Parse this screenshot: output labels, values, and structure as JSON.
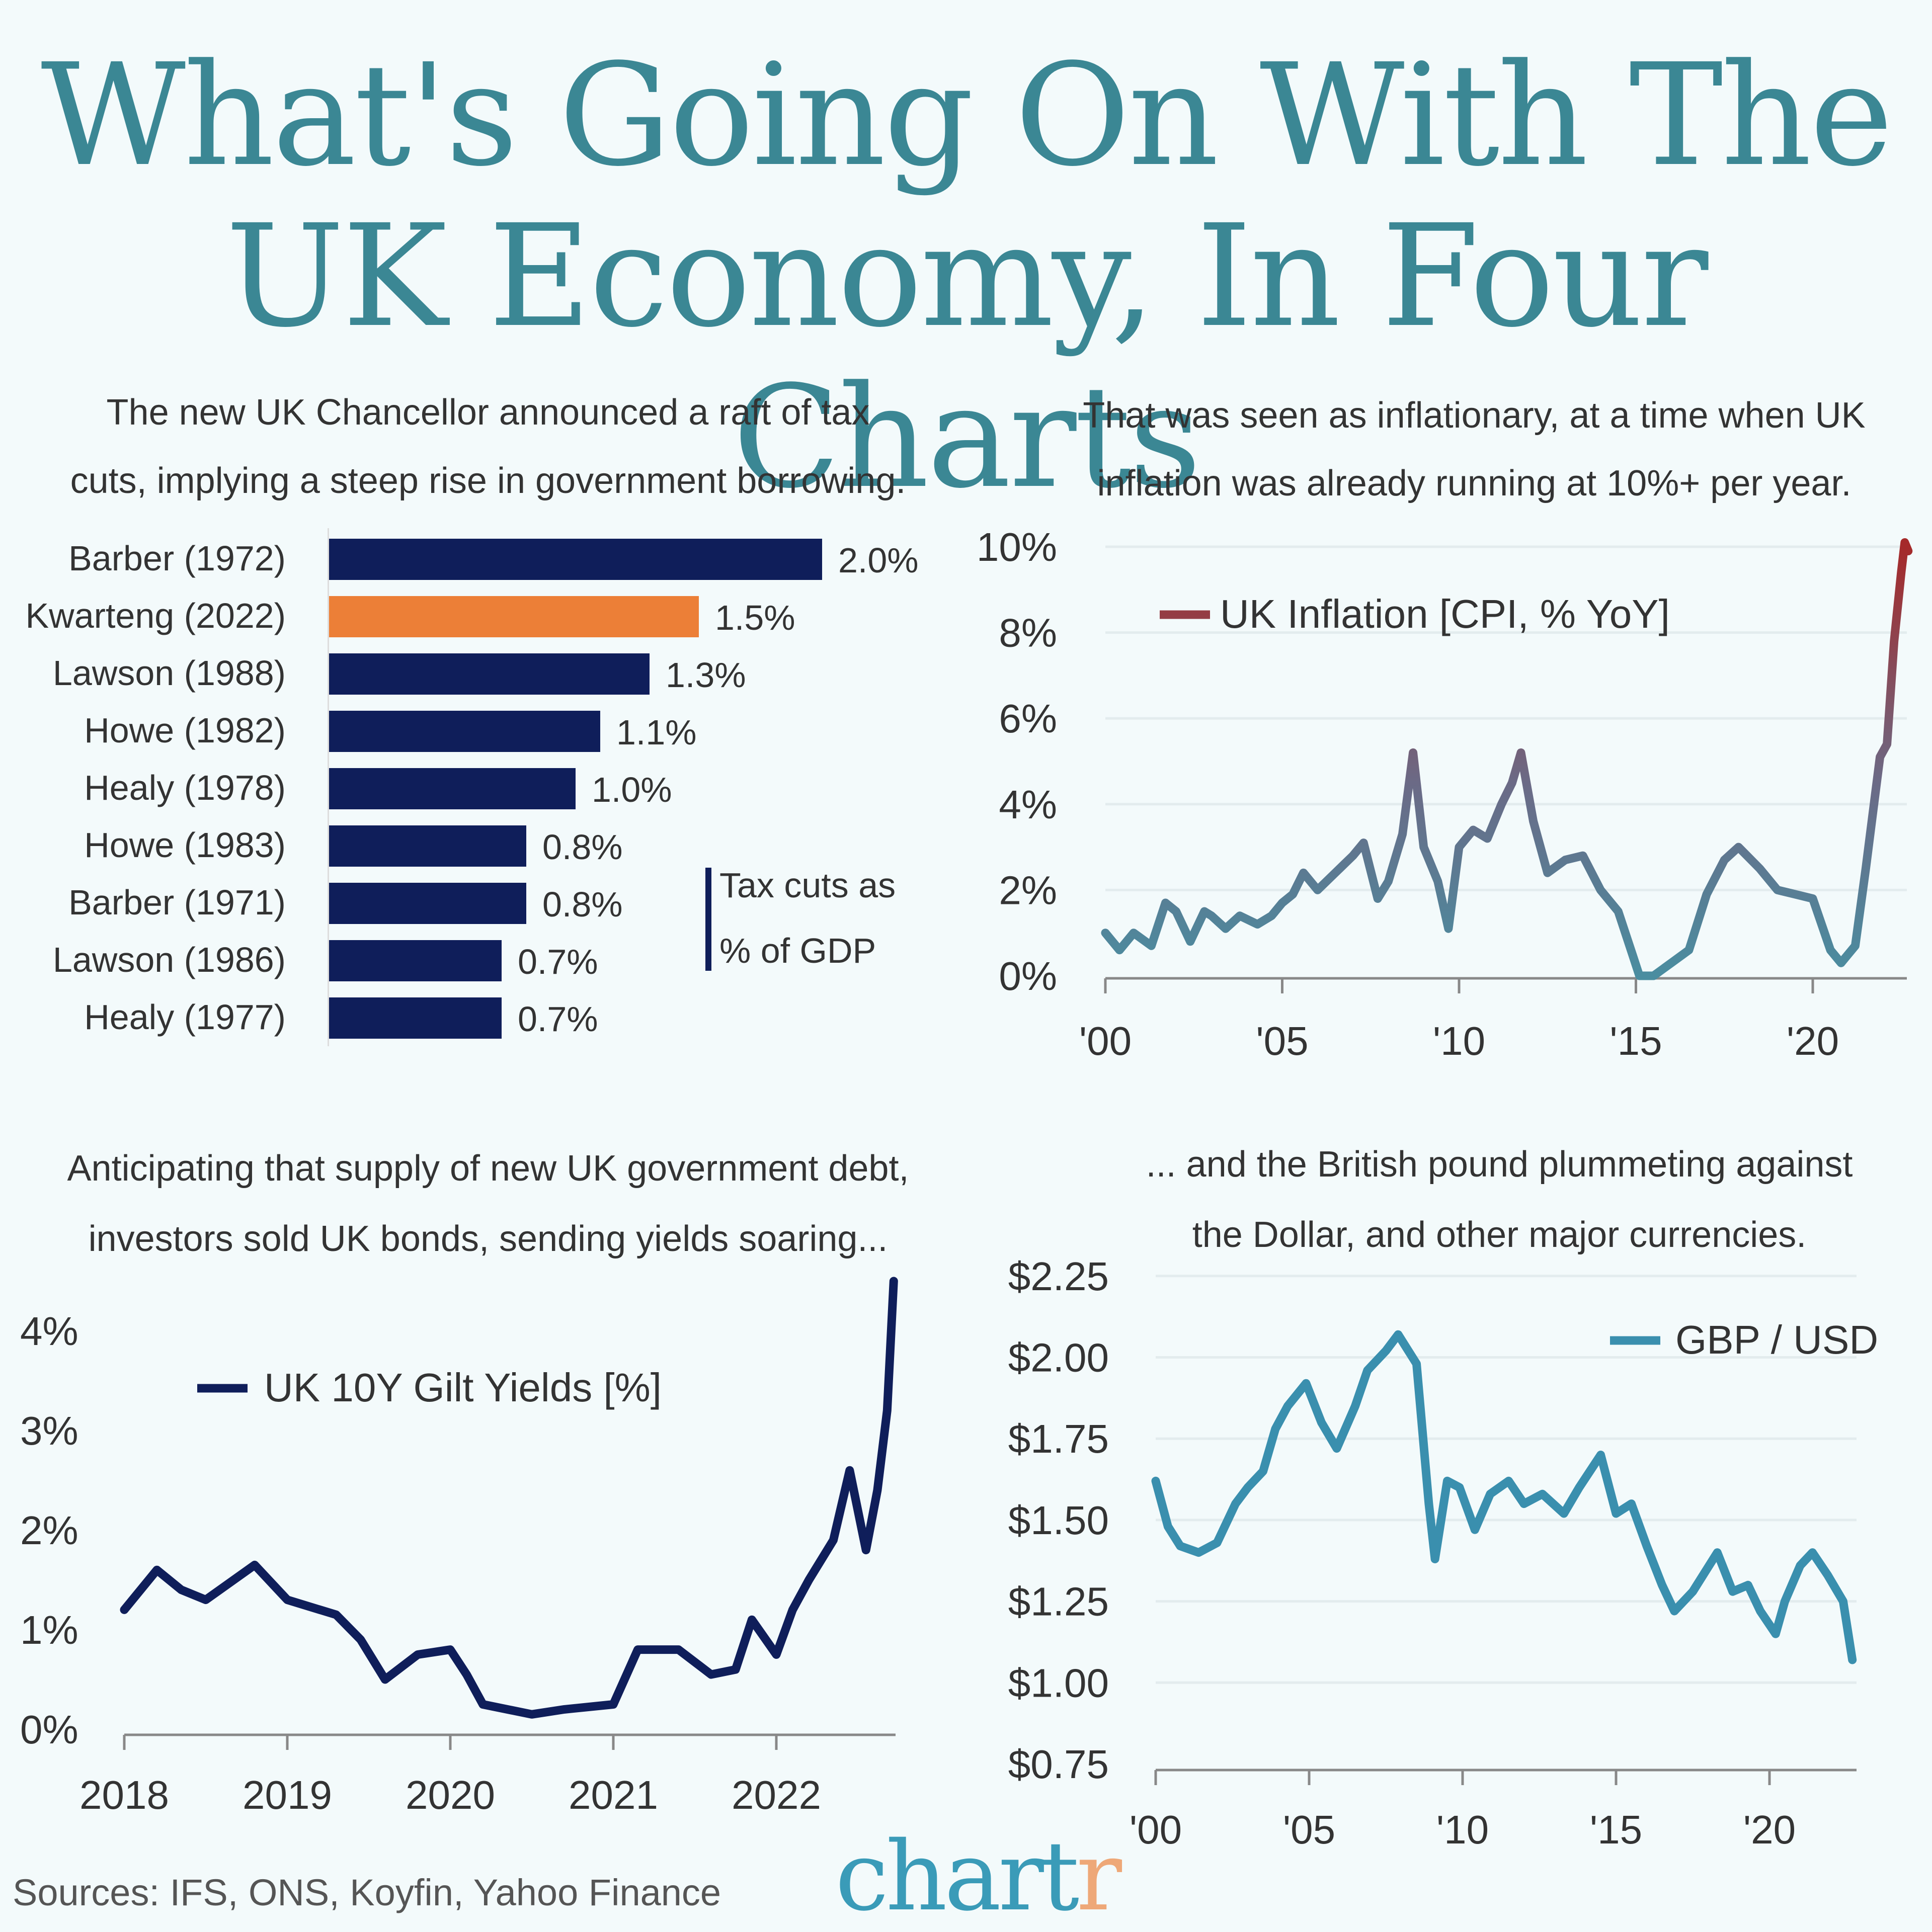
{
  "title": {
    "line1": "What's Going On With The",
    "line2": "UK Economy, In Four Charts"
  },
  "colors": {
    "title": "#3b8794",
    "navy": "#0f1e5a",
    "orange": "#ec7f37",
    "gbp": "#3a8fae",
    "inflation_low": "#4a8da0",
    "inflation_high": "#a52a2a",
    "background": "#f3fafb"
  },
  "sources": "Sources: IFS, ONS, Koyfin, Yahoo Finance",
  "logo": {
    "text": "chartr",
    "main": "chart",
    "accent": "r"
  },
  "chart_data": [
    {
      "type": "bar",
      "orientation": "horizontal",
      "subtitle": [
        "The new UK Chancellor announced a raft of tax",
        "cuts, implying a steep rise in government borrowing."
      ],
      "legend": [
        "Tax cuts as",
        "% of GDP"
      ],
      "categories": [
        "Barber (1972)",
        "Kwarteng (2022)",
        "Lawson (1988)",
        "Howe (1982)",
        "Healy (1978)",
        "Howe (1983)",
        "Barber (1971)",
        "Lawson (1986)",
        "Healy (1977)"
      ],
      "values": [
        2.0,
        1.5,
        1.3,
        1.1,
        1.0,
        0.8,
        0.8,
        0.7,
        0.7
      ],
      "labels": [
        "2.0%",
        "1.5%",
        "1.3%",
        "1.1%",
        "1.0%",
        "0.8%",
        "0.8%",
        "0.7%",
        "0.7%"
      ],
      "highlight": "Kwarteng (2022)",
      "unit": "%"
    },
    {
      "type": "line",
      "subtitle": [
        "That was seen as inflationary, at a time when UK",
        "inflation was already running at 10%+ per year."
      ],
      "series": [
        {
          "name": "UK Inflation [CPI, % YoY]",
          "points": [
            [
              2000,
              1.0
            ],
            [
              2000.4,
              0.6
            ],
            [
              2000.8,
              1.0
            ],
            [
              2001.3,
              0.7
            ],
            [
              2001.7,
              1.7
            ],
            [
              2002.0,
              1.5
            ],
            [
              2002.4,
              0.8
            ],
            [
              2002.8,
              1.5
            ],
            [
              2003.0,
              1.4
            ],
            [
              2003.4,
              1.1
            ],
            [
              2003.8,
              1.4
            ],
            [
              2004.3,
              1.2
            ],
            [
              2004.7,
              1.4
            ],
            [
              2005.0,
              1.7
            ],
            [
              2005.3,
              1.9
            ],
            [
              2005.6,
              2.4
            ],
            [
              2006.0,
              2.0
            ],
            [
              2006.5,
              2.4
            ],
            [
              2007.0,
              2.8
            ],
            [
              2007.3,
              3.1
            ],
            [
              2007.7,
              1.8
            ],
            [
              2008.0,
              2.2
            ],
            [
              2008.4,
              3.3
            ],
            [
              2008.7,
              5.2
            ],
            [
              2009.0,
              3.0
            ],
            [
              2009.4,
              2.2
            ],
            [
              2009.7,
              1.1
            ],
            [
              2010.0,
              3.0
            ],
            [
              2010.4,
              3.4
            ],
            [
              2010.8,
              3.2
            ],
            [
              2011.2,
              4.0
            ],
            [
              2011.5,
              4.5
            ],
            [
              2011.75,
              5.2
            ],
            [
              2012.1,
              3.6
            ],
            [
              2012.5,
              2.4
            ],
            [
              2013.0,
              2.7
            ],
            [
              2013.5,
              2.8
            ],
            [
              2014.0,
              2.0
            ],
            [
              2014.5,
              1.5
            ],
            [
              2014.9,
              0.5
            ],
            [
              2015.1,
              0.0
            ],
            [
              2015.5,
              0.0
            ],
            [
              2016.0,
              0.3
            ],
            [
              2016.5,
              0.6
            ],
            [
              2017.0,
              1.9
            ],
            [
              2017.5,
              2.7
            ],
            [
              2017.9,
              3.0
            ],
            [
              2018.5,
              2.5
            ],
            [
              2019.0,
              2.0
            ],
            [
              2019.5,
              1.9
            ],
            [
              2020.0,
              1.8
            ],
            [
              2020.5,
              0.6
            ],
            [
              2020.8,
              0.3
            ],
            [
              2021.2,
              0.7
            ],
            [
              2021.5,
              2.5
            ],
            [
              2021.9,
              5.1
            ],
            [
              2022.1,
              5.4
            ],
            [
              2022.3,
              7.8
            ],
            [
              2022.5,
              9.4
            ],
            [
              2022.6,
              10.1
            ],
            [
              2022.7,
              9.9
            ]
          ]
        }
      ],
      "yticks": [
        0,
        2,
        4,
        6,
        8,
        10
      ],
      "ytick_labels": [
        "0%",
        "2%",
        "4%",
        "6%",
        "8%",
        "10%"
      ],
      "ylim": [
        0,
        10
      ],
      "xticks": [
        2000,
        2005,
        2010,
        2015,
        2020
      ],
      "xtick_labels": [
        "'00",
        "'05",
        "'10",
        "'15",
        "'20"
      ],
      "xlim": [
        2000,
        2022.8
      ],
      "grid": true,
      "legend_placement": "top-left"
    },
    {
      "type": "line",
      "subtitle": [
        "Anticipating that supply of new UK government debt,",
        "investors sold UK bonds, sending yields soaring..."
      ],
      "series": [
        {
          "name": "UK 10Y Gilt Yields [%]",
          "points": [
            [
              2018,
              1.2
            ],
            [
              2018.2,
              1.6
            ],
            [
              2018.35,
              1.4
            ],
            [
              2018.5,
              1.3
            ],
            [
              2018.8,
              1.65
            ],
            [
              2019.0,
              1.3
            ],
            [
              2019.3,
              1.15
            ],
            [
              2019.45,
              0.9
            ],
            [
              2019.6,
              0.5
            ],
            [
              2019.8,
              0.75
            ],
            [
              2020.0,
              0.8
            ],
            [
              2020.1,
              0.55
            ],
            [
              2020.2,
              0.25
            ],
            [
              2020.5,
              0.15
            ],
            [
              2020.7,
              0.2
            ],
            [
              2021.0,
              0.25
            ],
            [
              2021.15,
              0.8
            ],
            [
              2021.4,
              0.8
            ],
            [
              2021.6,
              0.55
            ],
            [
              2021.75,
              0.6
            ],
            [
              2021.85,
              1.1
            ],
            [
              2022.0,
              0.75
            ],
            [
              2022.1,
              1.2
            ],
            [
              2022.2,
              1.5
            ],
            [
              2022.35,
              1.9
            ],
            [
              2022.45,
              2.6
            ],
            [
              2022.55,
              1.8
            ],
            [
              2022.62,
              2.4
            ],
            [
              2022.68,
              3.2
            ],
            [
              2022.72,
              4.5
            ]
          ]
        }
      ],
      "yticks": [
        0,
        1,
        2,
        3,
        4
      ],
      "ytick_labels": [
        "0%",
        "1%",
        "2%",
        "3%",
        "4%"
      ],
      "ylim": [
        0,
        4.5
      ],
      "xticks": [
        2018,
        2019,
        2020,
        2021,
        2022
      ],
      "xtick_labels": [
        "2018",
        "2019",
        "2020",
        "2021",
        "2022"
      ],
      "xlim": [
        2018,
        2022.8
      ],
      "grid": false,
      "legend_placement": "top-left"
    },
    {
      "type": "line",
      "subtitle": [
        "... and the British pound plummeting against",
        "the Dollar, and other major currencies."
      ],
      "series": [
        {
          "name": "GBP / USD",
          "points": [
            [
              2000,
              1.62
            ],
            [
              2000.4,
              1.48
            ],
            [
              2000.8,
              1.42
            ],
            [
              2001.4,
              1.4
            ],
            [
              2002.0,
              1.43
            ],
            [
              2002.6,
              1.55
            ],
            [
              2003.0,
              1.6
            ],
            [
              2003.5,
              1.65
            ],
            [
              2003.9,
              1.78
            ],
            [
              2004.3,
              1.85
            ],
            [
              2004.9,
              1.92
            ],
            [
              2005.4,
              1.8
            ],
            [
              2005.9,
              1.72
            ],
            [
              2006.5,
              1.85
            ],
            [
              2006.9,
              1.96
            ],
            [
              2007.5,
              2.02
            ],
            [
              2007.9,
              2.07
            ],
            [
              2008.5,
              1.98
            ],
            [
              2008.9,
              1.55
            ],
            [
              2009.1,
              1.38
            ],
            [
              2009.5,
              1.62
            ],
            [
              2009.9,
              1.6
            ],
            [
              2010.4,
              1.47
            ],
            [
              2010.9,
              1.58
            ],
            [
              2011.5,
              1.62
            ],
            [
              2012.0,
              1.55
            ],
            [
              2012.6,
              1.58
            ],
            [
              2013.3,
              1.52
            ],
            [
              2013.8,
              1.6
            ],
            [
              2014.5,
              1.7
            ],
            [
              2015.0,
              1.52
            ],
            [
              2015.5,
              1.55
            ],
            [
              2016.0,
              1.42
            ],
            [
              2016.5,
              1.3
            ],
            [
              2016.9,
              1.22
            ],
            [
              2017.5,
              1.28
            ],
            [
              2017.9,
              1.34
            ],
            [
              2018.3,
              1.4
            ],
            [
              2018.8,
              1.28
            ],
            [
              2019.3,
              1.3
            ],
            [
              2019.7,
              1.22
            ],
            [
              2020.2,
              1.15
            ],
            [
              2020.5,
              1.25
            ],
            [
              2021.0,
              1.36
            ],
            [
              2021.4,
              1.4
            ],
            [
              2021.9,
              1.33
            ],
            [
              2022.4,
              1.25
            ],
            [
              2022.7,
              1.07
            ]
          ]
        }
      ],
      "yticks": [
        0.75,
        1.0,
        1.25,
        1.5,
        1.75,
        2.0,
        2.25
      ],
      "ytick_labels": [
        "$0.75",
        "$1.00",
        "$1.25",
        "$1.50",
        "$1.75",
        "$2.00",
        "$2.25"
      ],
      "ylim": [
        0.75,
        2.25
      ],
      "xticks": [
        2000,
        2005,
        2010,
        2015,
        2020
      ],
      "xtick_labels": [
        "'00",
        "'05",
        "'10",
        "'15",
        "'20"
      ],
      "xlim": [
        2000,
        2022.8
      ],
      "grid": true,
      "legend_placement": "top-right"
    }
  ]
}
